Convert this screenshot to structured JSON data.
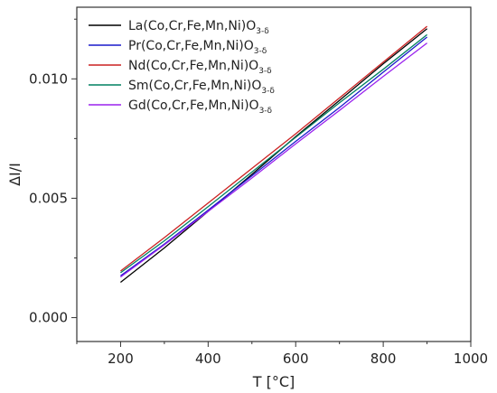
{
  "chart_data": {
    "type": "line",
    "xlabel": "T [°C]",
    "ylabel": "ΔI/I",
    "xlim": [
      100,
      1000
    ],
    "ylim": [
      -0.001,
      0.013
    ],
    "xticks": [
      200,
      400,
      600,
      800,
      1000
    ],
    "yticks": [
      0.0,
      0.005,
      0.01
    ],
    "xtick_labels": [
      "200",
      "400",
      "600",
      "800",
      "1000"
    ],
    "ytick_labels": [
      "0.000",
      "0.005",
      "0.010"
    ],
    "grid": false,
    "legend_position": "top-left",
    "series": [
      {
        "name_main": "La(Co,Cr,Fe,Mn,Ni)O",
        "name_sub": "3-δ",
        "color": "#000000",
        "x": [
          200,
          300,
          400,
          500,
          600,
          700,
          800,
          900
        ],
        "y": [
          0.00148,
          0.00292,
          0.00445,
          0.006,
          0.00758,
          0.0091,
          0.01063,
          0.0121
        ]
      },
      {
        "name_main": "Pr(Co,Cr,Fe,Mn,Ni)O",
        "name_sub": "3-δ",
        "color": "#1a1acc",
        "x": [
          200,
          300,
          400,
          500,
          600,
          700,
          800,
          900
        ],
        "y": [
          0.00175,
          0.00308,
          0.0045,
          0.00594,
          0.00738,
          0.0088,
          0.01028,
          0.01175
        ]
      },
      {
        "name_main": "Nd(Co,Cr,Fe,Mn,Ni)O",
        "name_sub": "3-δ",
        "color": "#cc2020",
        "x": [
          200,
          300,
          400,
          500,
          600,
          700,
          800,
          900
        ],
        "y": [
          0.00195,
          0.00335,
          0.0048,
          0.00625,
          0.0077,
          0.0092,
          0.0107,
          0.0122
        ]
      },
      {
        "name_main": "Sm(Co,Cr,Fe,Mn,Ni)O",
        "name_sub": "3-δ",
        "color": "#008060",
        "x": [
          200,
          300,
          400,
          500,
          600,
          700,
          800,
          900
        ],
        "y": [
          0.00188,
          0.00322,
          0.00465,
          0.0061,
          0.00755,
          0.009,
          0.0104,
          0.01185
        ]
      },
      {
        "name_main": "Gd(Co,Cr,Fe,Mn,Ni)O",
        "name_sub": "3-δ",
        "color": "#9a22ee",
        "x": [
          200,
          300,
          400,
          500,
          600,
          700,
          800,
          900
        ],
        "y": [
          0.0017,
          0.00305,
          0.00445,
          0.00585,
          0.00728,
          0.00868,
          0.0101,
          0.0115
        ]
      }
    ]
  }
}
